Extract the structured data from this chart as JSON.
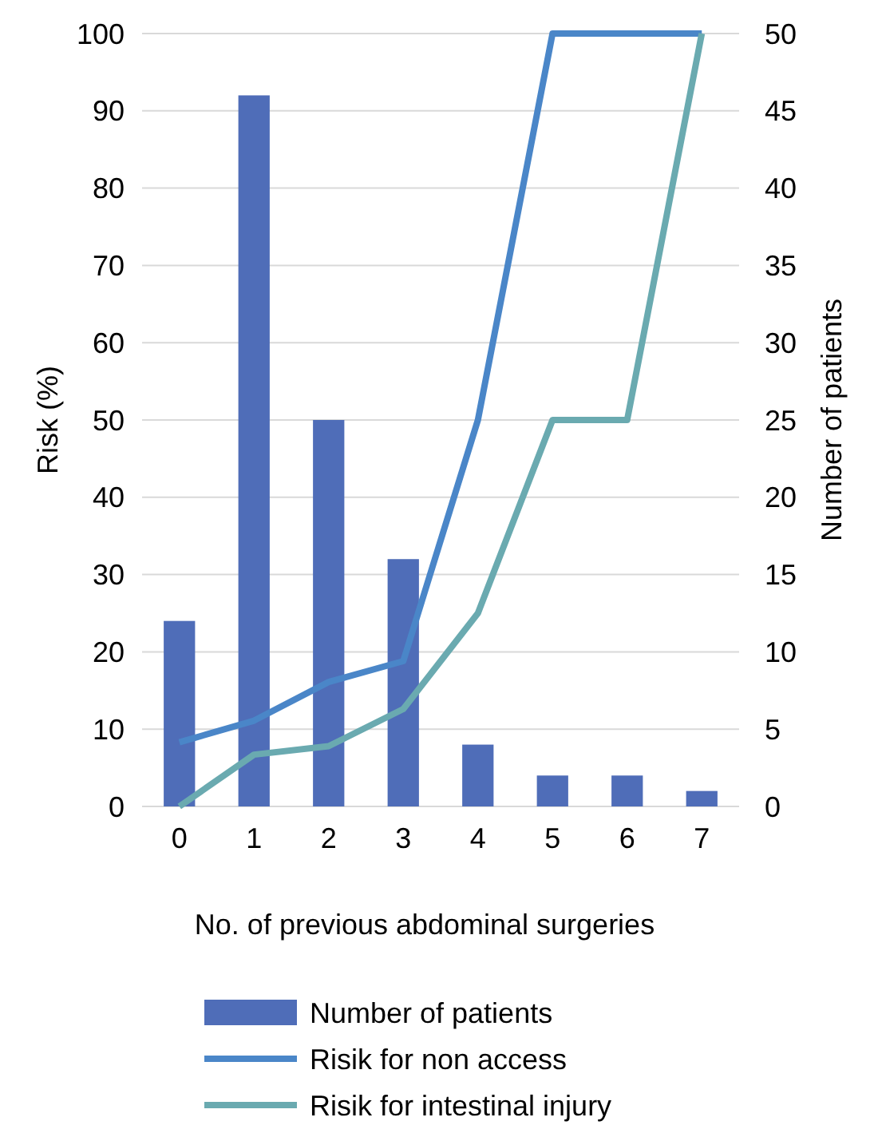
{
  "chart_data": {
    "type": "bar",
    "xlabel": "No. of previous abdominal surgeries",
    "ylabel": "Risk (%)",
    "y2label": "Number of patients",
    "categories": [
      "0",
      "1",
      "2",
      "3",
      "4",
      "5",
      "6",
      "7"
    ],
    "series": [
      {
        "name": "Number of patients",
        "axis": "y2",
        "color": "#4f6db8",
        "values": [
          12,
          46,
          25,
          16,
          4,
          2,
          2,
          1
        ]
      },
      {
        "name": "Risik for non access",
        "type": "line",
        "color": "#4a86c8",
        "values": [
          8.3,
          11.1,
          16.1,
          18.8,
          50,
          100,
          100,
          100
        ]
      },
      {
        "name": "Risik for intestinal injury",
        "type": "line",
        "color": "#6aaab0",
        "values": [
          0,
          6.7,
          7.8,
          12.6,
          25,
          50,
          50,
          100
        ]
      }
    ],
    "ylim": [
      0,
      100
    ],
    "yticks": [
      0,
      10,
      20,
      30,
      40,
      50,
      60,
      70,
      80,
      90,
      100
    ],
    "y2lim": [
      0,
      50
    ],
    "y2ticks": [
      0,
      5,
      10,
      15,
      20,
      25,
      30,
      35,
      40,
      45,
      50
    ],
    "grid": "y",
    "legend": "bottom",
    "marker": "none",
    "line_style": "solid"
  }
}
